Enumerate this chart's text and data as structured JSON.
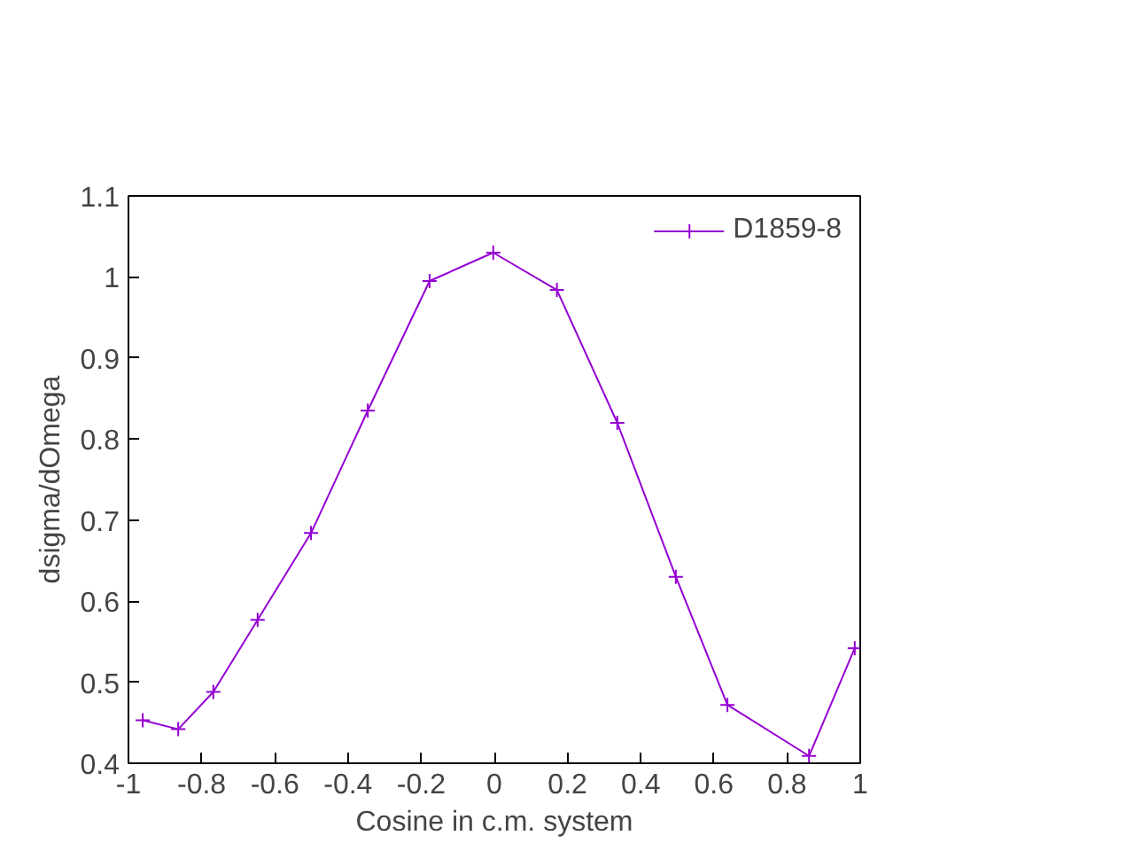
{
  "chart_data": {
    "type": "line",
    "xlabel": "Cosine in c.m. system",
    "ylabel": "dsigma/dOmega",
    "xlim": [
      -1,
      1
    ],
    "xticks": [
      -1,
      -0.8,
      -0.6,
      -0.4,
      -0.2,
      0,
      0.2,
      0.4,
      0.6,
      0.8,
      1
    ],
    "ylim": [
      0.4,
      1.1
    ],
    "yticks": [
      0.4,
      0.5,
      0.6,
      0.7,
      0.8,
      0.9,
      1,
      1.1
    ],
    "x": [
      -0.961,
      -0.864,
      -0.768,
      -0.647,
      -0.501,
      -0.346,
      -0.177,
      -0.003,
      0.171,
      0.336,
      0.496,
      0.637,
      0.86,
      0.985
    ],
    "series": [
      {
        "name": "D1859-8",
        "color": "#9400d3",
        "values": [
          0.453,
          0.442,
          0.488,
          0.577,
          0.684,
          0.835,
          0.995,
          1.03,
          0.984,
          0.82,
          0.63,
          0.472,
          0.409,
          0.542
        ]
      }
    ],
    "marker": "cross",
    "line_style": "solid",
    "legend": "top right",
    "grid": false
  }
}
